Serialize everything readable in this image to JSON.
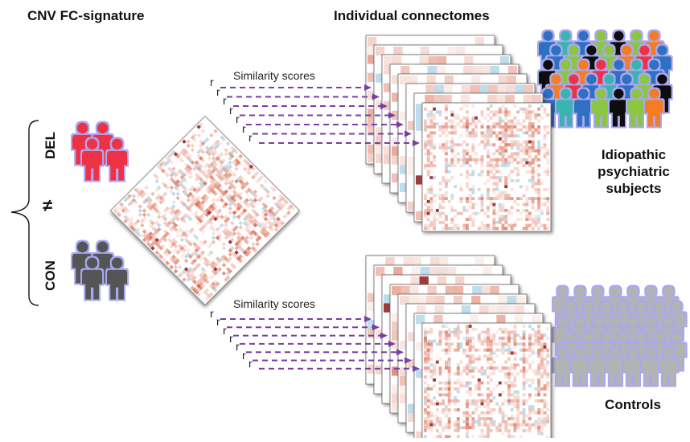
{
  "titles": {
    "left": "CNV FC-signature",
    "middle": "Individual connectomes"
  },
  "signature_groups": {
    "deletion": "DEL",
    "control": "CON",
    "not_equal": "≠"
  },
  "top_arrows": {
    "label": "Similarity scores",
    "r_label": "r"
  },
  "bottom_arrows": {
    "label": "Similarity scores",
    "r_label": "r"
  },
  "cohorts": {
    "top": [
      "Idiopathic",
      "psychiatric",
      "subjects"
    ],
    "bottom": "Controls"
  },
  "colors": {
    "del_people": "#ee3344",
    "con_people": "#555555",
    "controls_people": "#b3b3b3",
    "arrow": "#7a3fa0",
    "halo": "#a9a7f2",
    "matrix_red": "#d9573a",
    "matrix_blue": "#6fb3d8",
    "crowd": [
      "#2e6fc2",
      "#8bc63f",
      "#f47c20",
      "#3bb4b0",
      "#111111",
      "#ee3344",
      "#2e6fc2",
      "#8bc63f"
    ]
  },
  "icons": {
    "people": "person-icon",
    "brace": "curly-brace-icon"
  }
}
